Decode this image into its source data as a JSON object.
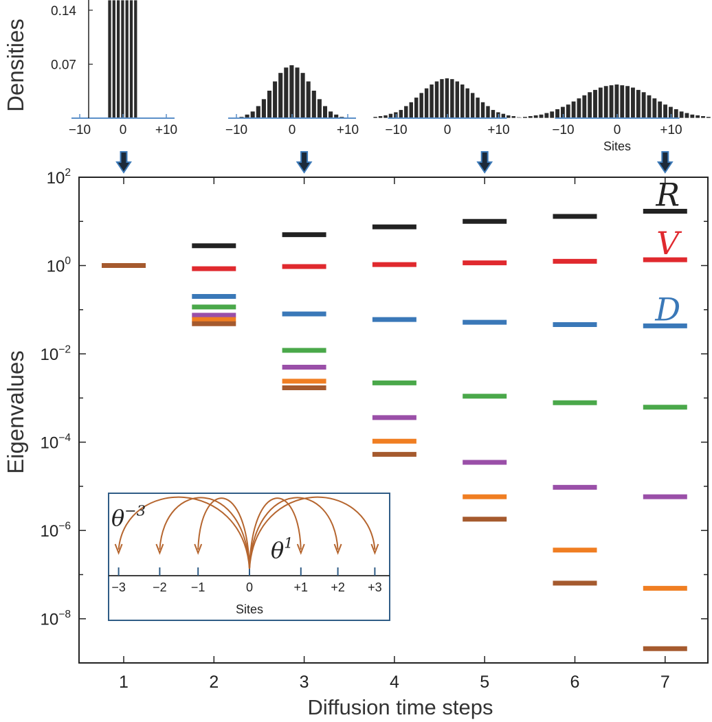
{
  "chart_data": [
    {
      "id": "histograms",
      "type": "bar",
      "ylabel": "Densities",
      "xlabel": "Sites",
      "y_ticks": [
        {
          "value": 0.07,
          "label": "0.07"
        },
        {
          "value": 0.14,
          "label": "0.14"
        }
      ],
      "x_ticks": [
        {
          "value": -10,
          "label": "−10"
        },
        {
          "value": 0,
          "label": "0"
        },
        {
          "value": 10,
          "label": "+10"
        }
      ],
      "panels": [
        {
          "time_step": 1,
          "sites": [
            -3,
            -2,
            -1,
            0,
            1,
            2,
            3
          ],
          "values": [
            0.143,
            0.143,
            0.143,
            0.143,
            0.143,
            0.143,
            0.143
          ],
          "x_ticks_labels": [
            "−10",
            "0",
            "+10"
          ],
          "xlabel": ""
        },
        {
          "time_step": 3,
          "sites": [
            -9,
            -8,
            -7,
            -6,
            -5,
            -4,
            -3,
            -2,
            -1,
            0,
            1,
            2,
            3,
            4,
            5,
            6,
            7,
            8,
            9
          ],
          "values": [
            0.002,
            0.005,
            0.009,
            0.016,
            0.025,
            0.036,
            0.048,
            0.059,
            0.066,
            0.069,
            0.066,
            0.059,
            0.048,
            0.036,
            0.025,
            0.016,
            0.009,
            0.005,
            0.002
          ],
          "x_ticks_labels": [
            "−10",
            "0",
            "+10"
          ],
          "xlabel": ""
        },
        {
          "time_step": 5,
          "sites": [
            -14,
            -13,
            -12,
            -11,
            -10,
            -9,
            -8,
            -7,
            -6,
            -5,
            -4,
            -3,
            -2,
            -1,
            0,
            1,
            2,
            3,
            4,
            5,
            6,
            7,
            8,
            9,
            10,
            11,
            12,
            13,
            14
          ],
          "values": [
            0.002,
            0.003,
            0.004,
            0.006,
            0.008,
            0.011,
            0.016,
            0.021,
            0.027,
            0.033,
            0.039,
            0.044,
            0.048,
            0.051,
            0.052,
            0.051,
            0.048,
            0.044,
            0.039,
            0.033,
            0.027,
            0.021,
            0.016,
            0.011,
            0.008,
            0.006,
            0.004,
            0.003,
            0.002
          ],
          "x_ticks_labels": [
            "−10",
            "0",
            "+10"
          ],
          "xlabel": ""
        },
        {
          "time_step": 7,
          "sites": [
            -18,
            -17,
            -16,
            -15,
            -14,
            -13,
            -12,
            -11,
            -10,
            -9,
            -8,
            -7,
            -6,
            -5,
            -4,
            -3,
            -2,
            -1,
            0,
            1,
            2,
            3,
            4,
            5,
            6,
            7,
            8,
            9,
            10,
            11,
            12,
            13,
            14,
            15,
            16,
            17,
            18
          ],
          "values": [
            0.001,
            0.002,
            0.003,
            0.004,
            0.005,
            0.007,
            0.009,
            0.012,
            0.015,
            0.018,
            0.022,
            0.026,
            0.03,
            0.034,
            0.037,
            0.04,
            0.042,
            0.043,
            0.044,
            0.043,
            0.042,
            0.04,
            0.037,
            0.034,
            0.03,
            0.026,
            0.022,
            0.018,
            0.015,
            0.012,
            0.009,
            0.007,
            0.005,
            0.004,
            0.003,
            0.002,
            0.001
          ],
          "x_ticks_labels": [
            "−10",
            "0",
            "+10"
          ],
          "xlabel": "Sites"
        }
      ]
    },
    {
      "id": "eigenvalues",
      "type": "scatter",
      "xlabel": "Diffusion time steps",
      "ylabel": "Eigenvalues",
      "scale": "log",
      "ylim": [
        1e-09,
        100
      ],
      "xlim": [
        0.5,
        7.5
      ],
      "x_ticks": [
        1,
        2,
        3,
        4,
        5,
        6,
        7
      ],
      "y_ticks": [
        {
          "exp": 2,
          "base": "10",
          "sup": "2"
        },
        {
          "exp": 0,
          "base": "10",
          "sup": "0"
        },
        {
          "exp": -2,
          "base": "10",
          "sup": "−2"
        },
        {
          "exp": -4,
          "base": "10",
          "sup": "−4"
        },
        {
          "exp": -6,
          "base": "10",
          "sup": "−6"
        },
        {
          "exp": -8,
          "base": "10",
          "sup": "−8"
        }
      ],
      "arrows_at_time_steps": [
        1,
        3,
        5,
        7
      ],
      "series": [
        {
          "color": "#222222",
          "points": [
            [
              2,
              2.8
            ],
            [
              3,
              5
            ],
            [
              4,
              7.5
            ],
            [
              5,
              10
            ],
            [
              6,
              13
            ],
            [
              7,
              17
            ]
          ]
        },
        {
          "color": "#e0292e",
          "points": [
            [
              2,
              0.85
            ],
            [
              3,
              0.95
            ],
            [
              4,
              1.05
            ],
            [
              5,
              1.15
            ],
            [
              6,
              1.25
            ],
            [
              7,
              1.35
            ]
          ]
        },
        {
          "color": "#3a78b8",
          "points": [
            [
              2,
              0.2
            ],
            [
              3,
              0.08
            ],
            [
              4,
              0.06
            ],
            [
              5,
              0.052
            ],
            [
              6,
              0.046
            ],
            [
              7,
              0.043
            ]
          ]
        },
        {
          "color": "#4aa84a",
          "points": [
            [
              2,
              0.115
            ],
            [
              3,
              0.012
            ],
            [
              4,
              0.0022
            ],
            [
              5,
              0.0011
            ],
            [
              6,
              0.00078
            ],
            [
              7,
              0.00062
            ]
          ]
        },
        {
          "color": "#9a4fa8",
          "points": [
            [
              2,
              0.075
            ],
            [
              3,
              0.005
            ],
            [
              4,
              0.00036
            ],
            [
              5,
              3.5e-05
            ],
            [
              6,
              9.5e-06
            ],
            [
              7,
              5.8e-06
            ]
          ]
        },
        {
          "color": "#f07e22",
          "points": [
            [
              2,
              0.06
            ],
            [
              3,
              0.0024
            ],
            [
              4,
              0.000105
            ],
            [
              5,
              5.8e-06
            ],
            [
              6,
              3.6e-07
            ],
            [
              7,
              4.9e-08
            ]
          ]
        },
        {
          "color": "#a55a2e",
          "points": [
            [
              1,
              1.0
            ],
            [
              2,
              0.048
            ],
            [
              3,
              0.0017
            ],
            [
              4,
              5.3e-05
            ],
            [
              5,
              1.8e-06
            ],
            [
              6,
              6.4e-08
            ],
            [
              7,
              2.1e-09
            ]
          ]
        }
      ],
      "labels": [
        {
          "text": "R",
          "color": "#222222",
          "value": 17
        },
        {
          "text": "V",
          "color": "#e0292e",
          "value": 1.35
        },
        {
          "text": "D",
          "color": "#3a78b8",
          "value": 0.043
        }
      ]
    },
    {
      "id": "inset",
      "type": "diagram",
      "xlabel": "Sites",
      "ticks": [
        {
          "value": -3,
          "label": "−3"
        },
        {
          "value": -2,
          "label": "−2"
        },
        {
          "value": -1,
          "label": "−1"
        },
        {
          "value": 0,
          "label": "0"
        },
        {
          "value": 1,
          "label": "+1"
        },
        {
          "value": 2,
          "label": "+2"
        },
        {
          "value": 3,
          "label": "+3"
        }
      ],
      "hops": [
        -3,
        -2,
        -1,
        1,
        2,
        3
      ],
      "annotations": [
        {
          "base": "θ",
          "sup": "−3"
        },
        {
          "base": "θ",
          "sup": "1"
        }
      ],
      "color": "#b5652e"
    }
  ]
}
